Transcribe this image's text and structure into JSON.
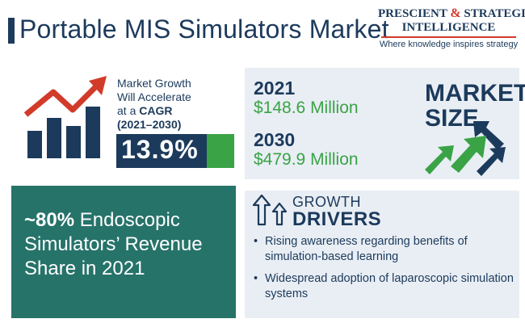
{
  "header": {
    "title": "Portable MIS Simulators Market",
    "logo_line1_a": "PRESCIENT",
    "logo_amp": "&",
    "logo_line1_b": "STRATEGIC",
    "logo_line2": "INTELLIGENCE",
    "logo_tagline": "Where knowledge inspires strategy"
  },
  "growth": {
    "text_line1": "Market Growth",
    "text_line2": "Will Accelerate",
    "text_line3_prefix": "at a",
    "text_line3_bold": "CAGR",
    "text_line4": "(2021–2030)",
    "cagr_value": "13.9%",
    "icon": "bar-chart-rising-arrow-icon"
  },
  "market_size": {
    "label_line1": "MARKET",
    "label_line2": "SIZE",
    "year1": "2021",
    "value1": "$148.6 Million",
    "year2": "2030",
    "value2": "$479.9 Million",
    "icon": "rising-arrows-icon"
  },
  "endoscopic": {
    "bold": "~80%",
    "text": "Endoscopic Simulators’ Revenue Share in 2021"
  },
  "drivers": {
    "label_line1": "GROWTH",
    "label_line2": "DRIVERS",
    "icon": "up-arrows-icon",
    "items": [
      "Rising awareness regarding benefits of simulation-based learning",
      "Widespread adoption of laparoscopic simulation systems"
    ]
  },
  "colors": {
    "navy": "#1c3a5c",
    "green": "#3aa346",
    "teal": "#26736a",
    "red": "#d23a2a",
    "card_bg": "#e9eef4"
  }
}
